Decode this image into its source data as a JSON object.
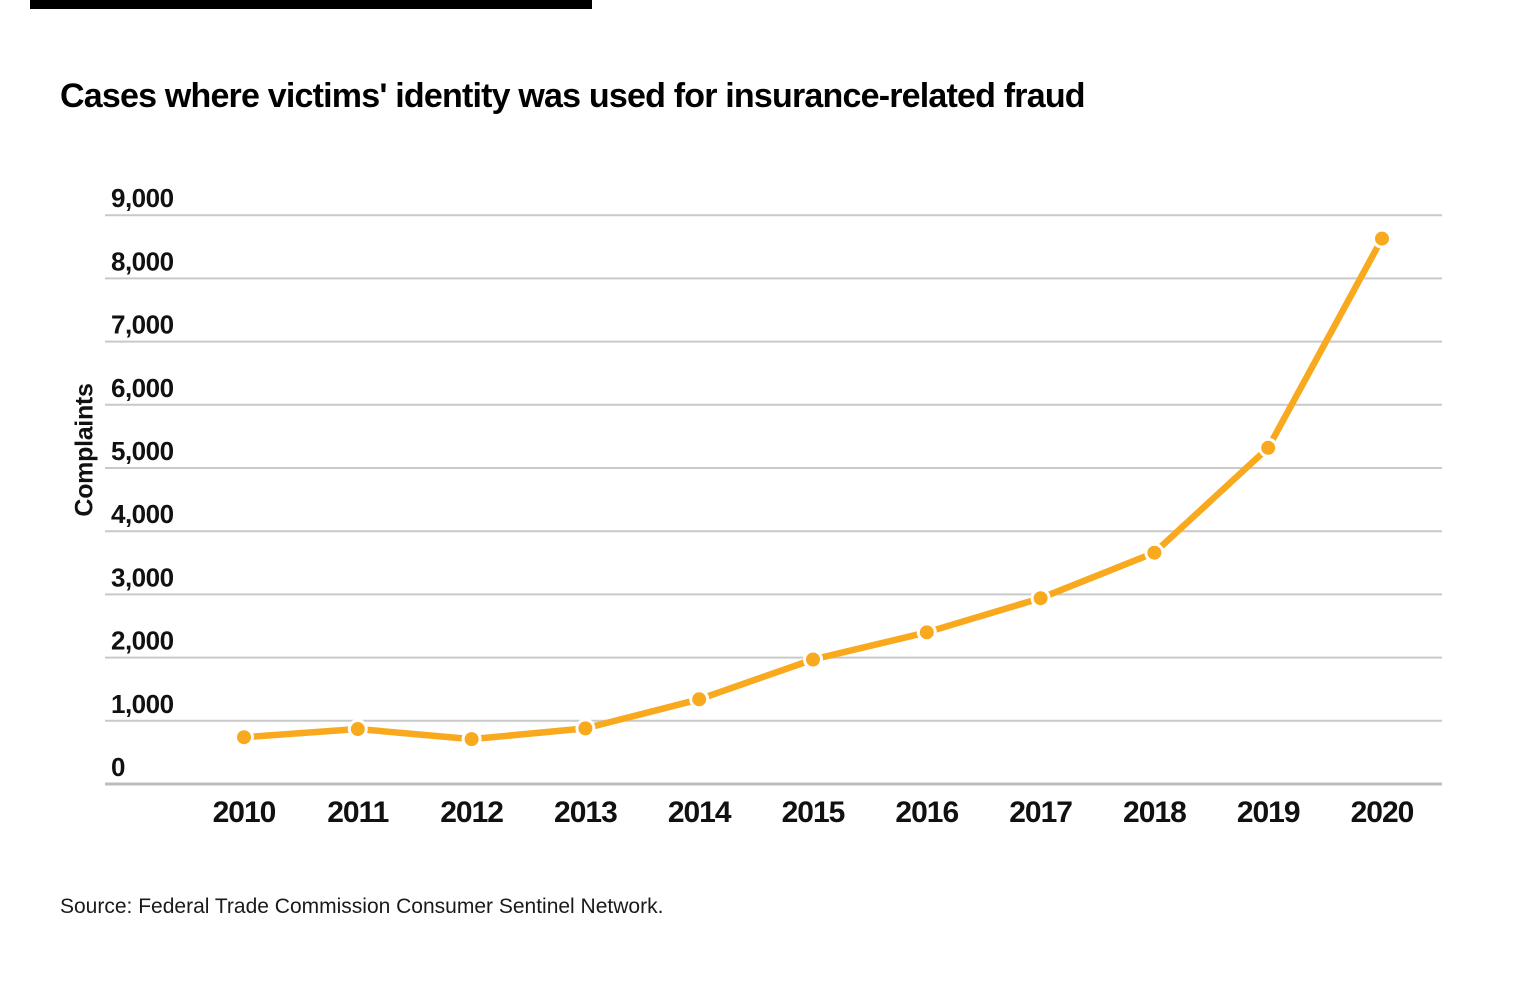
{
  "page": {
    "title": "Cases where victims' identity was used for insurance-related fraud",
    "source": "Source: Federal Trade Commission Consumer Sentinel Network."
  },
  "chart_data": {
    "type": "line",
    "title": "Cases where victims' identity was used for insurance-related fraud",
    "xlabel": "",
    "ylabel": "Complaints",
    "x": [
      "2010",
      "2011",
      "2012",
      "2013",
      "2014",
      "2015",
      "2016",
      "2017",
      "2018",
      "2019",
      "2020"
    ],
    "series": [
      {
        "name": "Complaints",
        "values": [
          740,
          870,
          710,
          880,
          1340,
          1970,
          2400,
          2940,
          3660,
          5320,
          8630
        ]
      }
    ],
    "ylim": [
      0,
      9000
    ],
    "y_tick_values": [
      0,
      1000,
      2000,
      3000,
      4000,
      5000,
      6000,
      7000,
      8000,
      9000
    ],
    "y_tick_labels": [
      "0",
      "1,000",
      "2,000",
      "3,000",
      "4,000",
      "5,000",
      "6,000",
      "7,000",
      "8,000",
      "9,000"
    ],
    "grid": "horizontal",
    "legend": "none",
    "marker": "circle",
    "line_color": "#F8A91E",
    "marker_color": "#F8A91E",
    "marker_outline": "#FFFFFF",
    "gridline_color": "#C9C9C9",
    "axis_line_color": "#BDBDBD",
    "background_color": "#FFFFFF",
    "source": "Source: Federal Trade Commission Consumer Sentinel Network."
  }
}
